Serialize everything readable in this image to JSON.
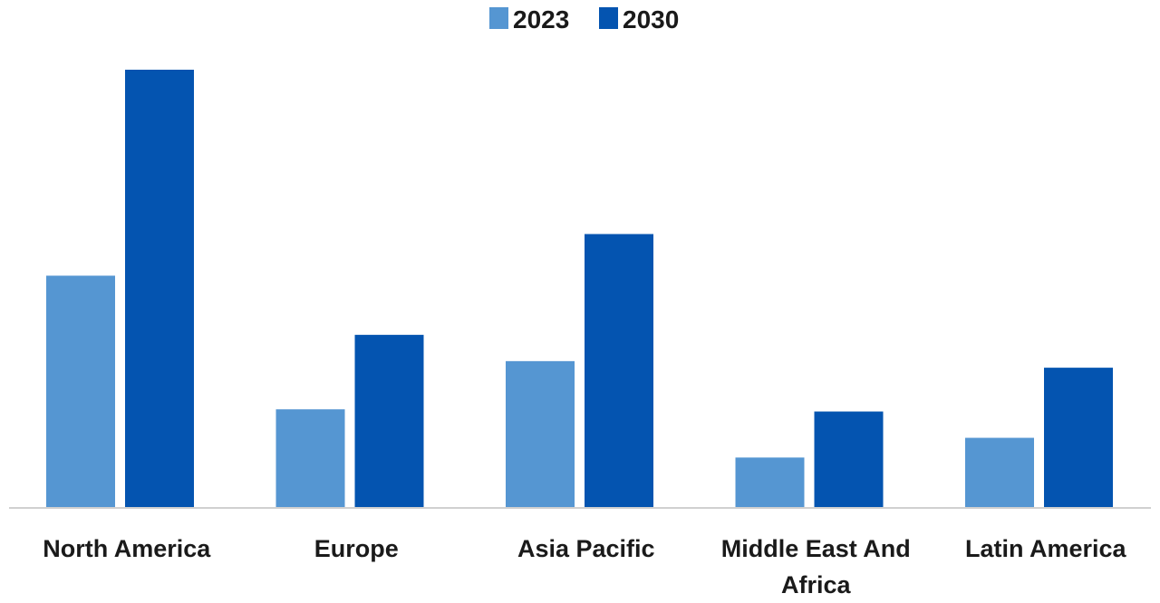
{
  "chart_data": {
    "type": "bar",
    "categories": [
      [
        "North America"
      ],
      [
        "Europe"
      ],
      [
        "Asia Pacific"
      ],
      [
        "Middle East And",
        "Africa"
      ],
      [
        "Latin America"
      ]
    ],
    "series": [
      {
        "name": "2023",
        "color": "#5596d2",
        "values": [
          53,
          22.5,
          33.5,
          11.5,
          16
        ]
      },
      {
        "name": "2030",
        "color": "#0454b0",
        "values": [
          100,
          39.5,
          62.5,
          22,
          32
        ]
      }
    ],
    "ylim": [
      0,
      100
    ],
    "grid": false,
    "legend_position": "top-center",
    "title": "",
    "xlabel": "",
    "ylabel": ""
  }
}
